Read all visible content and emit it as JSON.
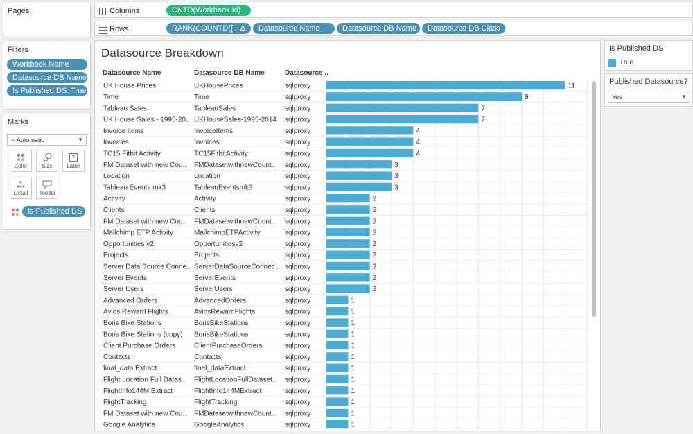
{
  "pages": {
    "title": "Pages"
  },
  "shelves": {
    "columns_label": "Columns",
    "columns_icon": "columns-icon",
    "columns_pill": "CNTD(Workbook Id)",
    "rows_label": "Rows",
    "rows_icon": "rows-icon",
    "rows_pills": [
      "RANK(COUNTD([..",
      "Datasource Name",
      "Datasource DB Name",
      "Datasource DB Class"
    ],
    "rank_sort_glyph": "Δ"
  },
  "filters": {
    "title": "Filters",
    "items": [
      "Workbook Name",
      "Datasource DB Name",
      "Is Published DS: True"
    ]
  },
  "marks": {
    "title": "Marks",
    "type_value": "Automatic",
    "buttons": [
      {
        "label": "Color",
        "icon": "color-icon"
      },
      {
        "label": "Size",
        "icon": "size-icon"
      },
      {
        "label": "Label",
        "icon": "label-icon"
      },
      {
        "label": "Detail",
        "icon": "detail-icon"
      },
      {
        "label": "Tooltip",
        "icon": "tooltip-icon"
      }
    ],
    "color_field": "Is Published DS"
  },
  "legend": {
    "title": "Is Published DS",
    "items": [
      {
        "label": "True",
        "color": "#4cacd4"
      }
    ]
  },
  "filter_card": {
    "title": "Published Datasource?",
    "value": "Yes"
  },
  "colors": {
    "bar": "#4cacd4",
    "pill_blue": "#4d8fb3",
    "pill_green": "#2fb27c",
    "grid": "#e6e6e6"
  },
  "chart_data": {
    "type": "bar",
    "title": "Datasource Breakdown",
    "row_headers": [
      "Datasource Name",
      "Datasource DB Name",
      "Datasource .."
    ],
    "rows": [
      {
        "name": "UK House Prices",
        "db_name": "UKHousePrices",
        "db_class": "sqlproxy",
        "value": 11
      },
      {
        "name": "Time",
        "db_name": "Time",
        "db_class": "sqlproxy",
        "value": 9
      },
      {
        "name": "Tableau Sales",
        "db_name": "TableauSales",
        "db_class": "sqlproxy",
        "value": 7
      },
      {
        "name": "UK House Sales - 1995-20..",
        "db_name": "UKHouseSales-1995-2014",
        "db_class": "sqlproxy",
        "value": 7
      },
      {
        "name": "Invoice Items",
        "db_name": "InvoiceItems",
        "db_class": "sqlproxy",
        "value": 4
      },
      {
        "name": "Invoices",
        "db_name": "Invoices",
        "db_class": "sqlproxy",
        "value": 4
      },
      {
        "name": "TC15 Fitbit Activity",
        "db_name": "TC15FitbitActivity",
        "db_class": "sqlproxy",
        "value": 4
      },
      {
        "name": "FM Dataset with new Cou..",
        "db_name": "FMDatasetwithnewCount..",
        "db_class": "sqlproxy",
        "value": 3
      },
      {
        "name": "Location",
        "db_name": "Location",
        "db_class": "sqlproxy",
        "value": 3
      },
      {
        "name": "Tableau Events mk3",
        "db_name": "TableauEventsmk3",
        "db_class": "sqlproxy",
        "value": 3
      },
      {
        "name": "Activity",
        "db_name": "Activity",
        "db_class": "sqlproxy",
        "value": 2
      },
      {
        "name": "Clients",
        "db_name": "Clients",
        "db_class": "sqlproxy",
        "value": 2
      },
      {
        "name": "FM Dataset with new Cou..",
        "db_name": "FMDatasetwithnewCount..",
        "db_class": "sqlproxy",
        "value": 2
      },
      {
        "name": "Mailchimp ETP Activity",
        "db_name": "MailchimpETPActivity",
        "db_class": "sqlproxy",
        "value": 2
      },
      {
        "name": "Opportunities v2",
        "db_name": "Opportunitiesv2",
        "db_class": "sqlproxy",
        "value": 2
      },
      {
        "name": "Projects",
        "db_name": "Projects",
        "db_class": "sqlproxy",
        "value": 2
      },
      {
        "name": "Server Data Source Conne..",
        "db_name": "ServerDataSourceConnec..",
        "db_class": "sqlproxy",
        "value": 2
      },
      {
        "name": "Server Events",
        "db_name": "ServerEvents",
        "db_class": "sqlproxy",
        "value": 2
      },
      {
        "name": "Server Users",
        "db_name": "ServerUsers",
        "db_class": "sqlproxy",
        "value": 2
      },
      {
        "name": "Advanced Orders",
        "db_name": "AdvancedOrders",
        "db_class": "sqlproxy",
        "value": 1
      },
      {
        "name": "Avios Reward Flights",
        "db_name": "AviosRewardFlights",
        "db_class": "sqlproxy",
        "value": 1
      },
      {
        "name": "Boris Bike Stations",
        "db_name": "BorisBikeStations",
        "db_class": "sqlproxy",
        "value": 1
      },
      {
        "name": "Boris Bike Stations (copy)",
        "db_name": "BorisBikeStations",
        "db_class": "sqlproxy",
        "value": 1
      },
      {
        "name": "Client Purchase Orders",
        "db_name": "ClientPurchaseOrders",
        "db_class": "sqlproxy",
        "value": 1
      },
      {
        "name": "Contacts",
        "db_name": "Contacts",
        "db_class": "sqlproxy",
        "value": 1
      },
      {
        "name": "final_data Extract",
        "db_name": "final_dataExtract",
        "db_class": "sqlproxy",
        "value": 1
      },
      {
        "name": "Flight Location Full Datas..",
        "db_name": "FlightLocationFullDataset..",
        "db_class": "sqlproxy",
        "value": 1
      },
      {
        "name": "FlightInfo144M Extract",
        "db_name": "FlightInfo144MExtract",
        "db_class": "sqlproxy",
        "value": 1
      },
      {
        "name": "FlightTracking",
        "db_name": "FlightTracking",
        "db_class": "sqlproxy",
        "value": 1
      },
      {
        "name": "FM Dataset with new Cou..",
        "db_name": "FMDatasetwithnewCount..",
        "db_class": "sqlproxy",
        "value": 1
      },
      {
        "name": "Google Analytics",
        "db_name": "GoogleAnalytics",
        "db_class": "sqlproxy",
        "value": 1
      }
    ],
    "xlim": [
      0,
      12
    ],
    "grid": true,
    "legend_position": "right"
  }
}
